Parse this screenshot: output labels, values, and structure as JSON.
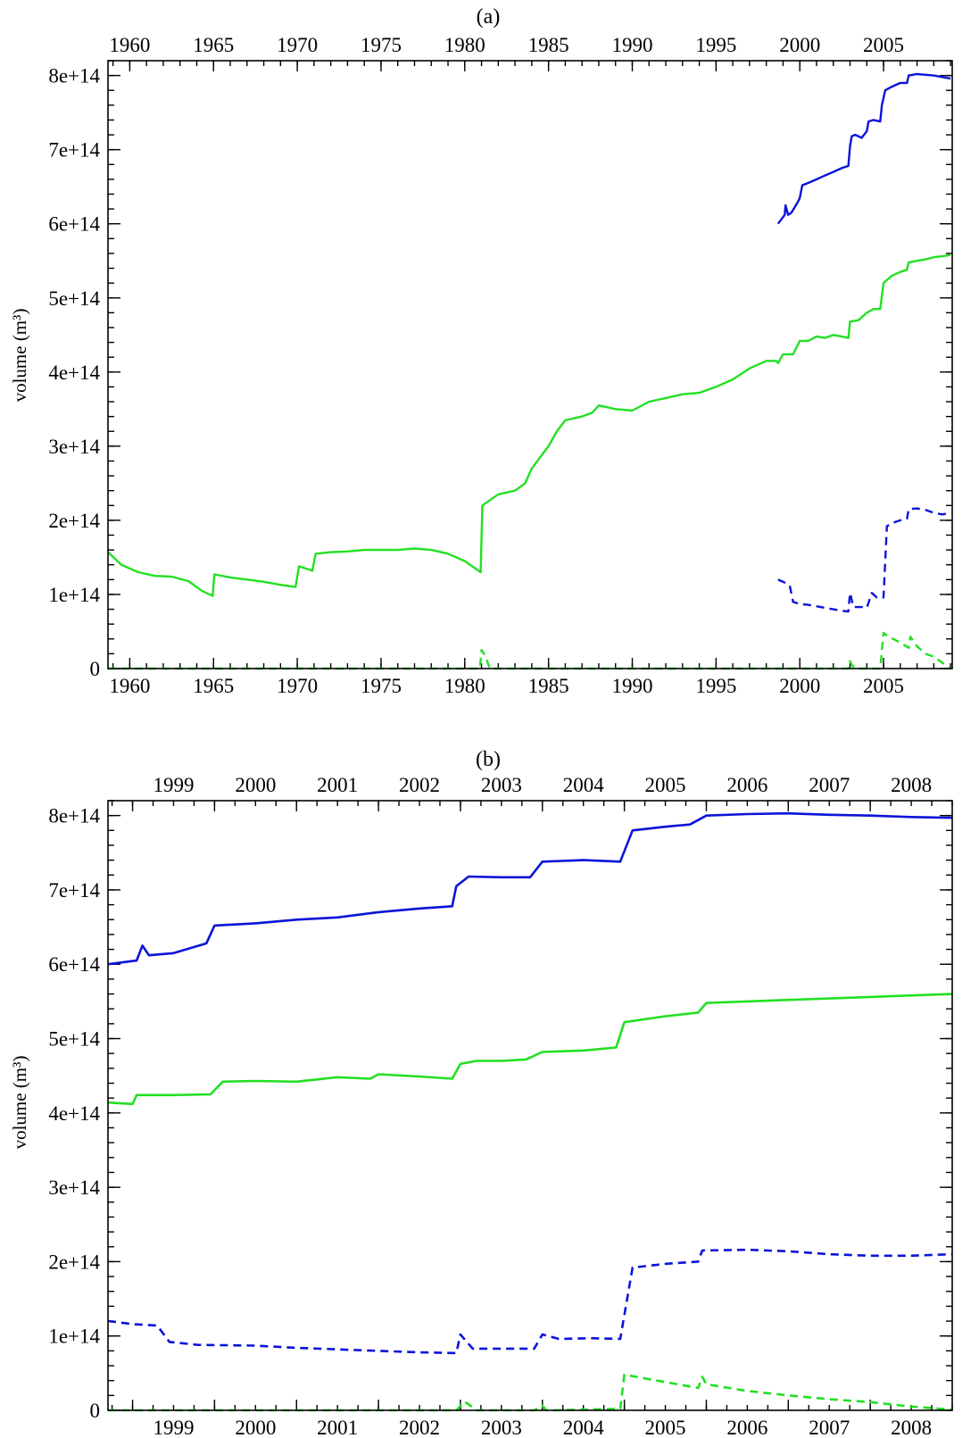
{
  "chart_data": [
    {
      "type": "line",
      "title": "(a)",
      "xlabel": "",
      "ylabel": "volume (m³)",
      "xlim": [
        1958.7,
        2009.1
      ],
      "ylim": [
        0,
        820000000000000.0
      ],
      "x_ticks": [
        1960,
        1965,
        1970,
        1975,
        1980,
        1985,
        1990,
        1995,
        2000,
        2005
      ],
      "y_ticks": [
        0,
        100000000000000.0,
        200000000000000.0,
        300000000000000.0,
        400000000000000.0,
        500000000000000.0,
        600000000000000.0,
        700000000000000.0,
        800000000000000.0
      ],
      "y_tick_labels": [
        "0",
        "1e+14",
        "2e+14",
        "3e+14",
        "4e+14",
        "5e+14",
        "6e+14",
        "7e+14",
        "8e+14"
      ],
      "grid": false,
      "legend": false,
      "series": [
        {
          "color": "#0a14d8",
          "style": "solid",
          "x": [
            1998.7,
            1999.1,
            1999.15,
            1999.3,
            1999.5,
            1999.9,
            2000.0,
            2000.15,
            2000.5,
            2001.0,
            2001.5,
            2002.0,
            2002.5,
            2002.9,
            2003.0,
            2003.1,
            2003.3,
            2003.7,
            2004.0,
            2004.1,
            2004.4,
            2004.8,
            2004.9,
            2005.1,
            2005.5,
            2006.0,
            2006.4,
            2006.5,
            2007.0,
            2007.5,
            2008.0,
            2008.5,
            2009.0
          ],
          "y": [
            600000000000000.0,
            612000000000000.0,
            625000000000000.0,
            612000000000000.0,
            615000000000000.0,
            630000000000000.0,
            635000000000000.0,
            652000000000000.0,
            655000000000000.0,
            660000000000000.0,
            665000000000000.0,
            670000000000000.0,
            675000000000000.0,
            678000000000000.0,
            705000000000000.0,
            718000000000000.0,
            720000000000000.0,
            716000000000000.0,
            725000000000000.0,
            738000000000000.0,
            740000000000000.0,
            738000000000000.0,
            760000000000000.0,
            780000000000000.0,
            785000000000000.0,
            790000000000000.0,
            790000000000000.0,
            800000000000000.0,
            802000000000000.0,
            801000000000000.0,
            800000000000000.0,
            798000000000000.0,
            796000000000000.0
          ]
        },
        {
          "color": "#0a14d8",
          "style": "dashed",
          "x": [
            1998.7,
            1999.2,
            1999.4,
            1999.6,
            2000.0,
            2000.5,
            2001.0,
            2001.5,
            2002.0,
            2002.5,
            2002.9,
            2003.0,
            2003.2,
            2003.5,
            2003.8,
            2004.0,
            2004.3,
            2004.6,
            2004.8,
            2005.0,
            2005.2,
            2005.6,
            2006.0,
            2006.4,
            2006.5,
            2007.0,
            2007.5,
            2008.0,
            2008.5,
            2009.0
          ],
          "y": [
            120000000000000.0,
            115000000000000.0,
            112000000000000.0,
            90000000000000.0,
            87000000000000.0,
            86000000000000.0,
            84000000000000.0,
            82000000000000.0,
            80000000000000.0,
            78000000000000.0,
            77000000000000.0,
            102000000000000.0,
            83000000000000.0,
            83000000000000.0,
            83000000000000.0,
            82000000000000.0,
            102000000000000.0,
            96000000000000.0,
            97000000000000.0,
            96000000000000.0,
            192000000000000.0,
            197000000000000.0,
            200000000000000.0,
            202000000000000.0,
            215000000000000.0,
            216000000000000.0,
            214000000000000.0,
            210000000000000.0,
            208000000000000.0,
            210000000000000.0
          ]
        },
        {
          "color": "#22e022",
          "style": "solid",
          "x": [
            1958.7,
            1959.5,
            1960.5,
            1961.5,
            1962.5,
            1963.5,
            1964.3,
            1964.95,
            1965.05,
            1966.0,
            1967.0,
            1968.0,
            1969.0,
            1969.9,
            1970.1,
            1970.5,
            1970.9,
            1971.1,
            1972.0,
            1973.0,
            1974.0,
            1975.0,
            1976.0,
            1977.0,
            1978.0,
            1979.0,
            1980.0,
            1980.95,
            1981.05,
            1982.0,
            1983.0,
            1983.6,
            1984.0,
            1984.5,
            1985.0,
            1985.5,
            1986.0,
            1987.0,
            1987.6,
            1988.0,
            1989.0,
            1990.0,
            1991.0,
            1992.0,
            1993.0,
            1994.0,
            1995.0,
            1996.0,
            1997.0,
            1998.0,
            1998.6,
            1998.7,
            1999.0,
            1999.6,
            2000.0,
            2000.5,
            2001.0,
            2001.5,
            2002.0,
            2002.5,
            2002.9,
            2003.0,
            2003.5,
            2004.0,
            2004.4,
            2004.8,
            2005.0,
            2005.5,
            2006.0,
            2006.4,
            2006.5,
            2007.0,
            2007.5,
            2008.0,
            2008.5,
            2009.0
          ],
          "y": [
            157000000000000.0,
            140000000000000.0,
            130000000000000.0,
            125000000000000.0,
            124000000000000.0,
            118000000000000.0,
            105000000000000.0,
            98000000000000.0,
            127000000000000.0,
            123000000000000.0,
            120000000000000.0,
            117000000000000.0,
            113000000000000.0,
            110000000000000.0,
            138000000000000.0,
            135000000000000.0,
            132000000000000.0,
            155000000000000.0,
            157000000000000.0,
            158000000000000.0,
            160000000000000.0,
            160000000000000.0,
            160000000000000.0,
            162000000000000.0,
            160000000000000.0,
            155000000000000.0,
            145000000000000.0,
            130000000000000.0,
            220000000000000.0,
            235000000000000.0,
            240000000000000.0,
            250000000000000.0,
            270000000000000.0,
            285000000000000.0,
            300000000000000.0,
            320000000000000.0,
            335000000000000.0,
            340000000000000.0,
            345000000000000.0,
            355000000000000.0,
            350000000000000.0,
            348000000000000.0,
            360000000000000.0,
            365000000000000.0,
            370000000000000.0,
            372000000000000.0,
            380000000000000.0,
            390000000000000.0,
            405000000000000.0,
            415000000000000.0,
            415000000000000.0,
            412000000000000.0,
            424000000000000.0,
            424000000000000.0,
            442000000000000.0,
            442000000000000.0,
            448000000000000.0,
            446000000000000.0,
            450000000000000.0,
            448000000000000.0,
            446000000000000.0,
            468000000000000.0,
            470000000000000.0,
            480000000000000.0,
            485000000000000.0,
            485000000000000.0,
            520000000000000.0,
            530000000000000.0,
            535000000000000.0,
            538000000000000.0,
            548000000000000.0,
            550000000000000.0,
            552000000000000.0,
            555000000000000.0,
            556000000000000.0,
            558000000000000.0
          ]
        },
        {
          "color": "#22e022",
          "style": "dashed",
          "x": [
            1958.7,
            1980.9,
            1981.0,
            1981.2,
            1981.5,
            2002.9,
            2003.0,
            2003.1,
            2003.3,
            2004.8,
            2005.0,
            2005.3,
            2006.0,
            2006.5,
            2006.6,
            2007.0,
            2007.5,
            2008.0,
            2008.5,
            2009.0
          ],
          "y": [
            0,
            0,
            25000000000000.0,
            18000000000000.0,
            0,
            0,
            10000000000000.0,
            5000000000000.0,
            0,
            0,
            48000000000000.0,
            43000000000000.0,
            35000000000000.0,
            28000000000000.0,
            43000000000000.0,
            30000000000000.0,
            20000000000000.0,
            16000000000000.0,
            8000000000000.0,
            0
          ]
        }
      ]
    },
    {
      "type": "line",
      "title": "(b)",
      "xlabel": "",
      "ylabel": "volume (m³)",
      "xlim": [
        1998.7,
        2009.0
      ],
      "ylim": [
        0,
        820000000000000.0
      ],
      "x_ticks": [
        1999,
        2000,
        2001,
        2002,
        2003,
        2004,
        2005,
        2006,
        2007,
        2008
      ],
      "x_tick_labels_position": "mid-year",
      "y_ticks": [
        0,
        100000000000000.0,
        200000000000000.0,
        300000000000000.0,
        400000000000000.0,
        500000000000000.0,
        600000000000000.0,
        700000000000000.0,
        800000000000000.0
      ],
      "y_tick_labels": [
        "0",
        "1e+14",
        "2e+14",
        "3e+14",
        "4e+14",
        "5e+14",
        "6e+14",
        "7e+14",
        "8e+14"
      ],
      "grid": false,
      "legend": false,
      "series": [
        {
          "color": "#0a14d8",
          "style": "solid",
          "x": [
            1998.7,
            1999.05,
            1999.12,
            1999.2,
            1999.5,
            1999.9,
            2000.0,
            2000.5,
            2001.0,
            2001.5,
            2002.0,
            2002.5,
            2002.9,
            2002.95,
            2003.1,
            2003.5,
            2003.85,
            2004.0,
            2004.5,
            2004.95,
            2005.1,
            2005.5,
            2005.8,
            2006.0,
            2006.5,
            2007.0,
            2007.5,
            2008.0,
            2008.5,
            2009.0
          ],
          "y": [
            600000000000000.0,
            605000000000000.0,
            625000000000000.0,
            612000000000000.0,
            615000000000000.0,
            628000000000000.0,
            652000000000000.0,
            655000000000000.0,
            660000000000000.0,
            663000000000000.0,
            670000000000000.0,
            675000000000000.0,
            678000000000000.0,
            705000000000000.0,
            718000000000000.0,
            717000000000000.0,
            717000000000000.0,
            738000000000000.0,
            740000000000000.0,
            738000000000000.0,
            780000000000000.0,
            785000000000000.0,
            788000000000000.0,
            800000000000000.0,
            802000000000000.0,
            803000000000000.0,
            801000000000000.0,
            800000000000000.0,
            798000000000000.0,
            797000000000000.0
          ]
        },
        {
          "color": "#0a14d8",
          "style": "dashed",
          "x": [
            1998.7,
            1999.0,
            1999.3,
            1999.45,
            1999.8,
            2000.5,
            2001.0,
            2001.5,
            2002.0,
            2002.5,
            2002.95,
            2003.0,
            2003.15,
            2003.5,
            2003.9,
            2004.0,
            2004.2,
            2004.6,
            2004.95,
            2005.1,
            2005.5,
            2005.9,
            2005.95,
            2006.5,
            2007.0,
            2007.5,
            2008.0,
            2008.5,
            2009.0
          ],
          "y": [
            120000000000000.0,
            116000000000000.0,
            114000000000000.0,
            92000000000000.0,
            88000000000000.0,
            87000000000000.0,
            84000000000000.0,
            82000000000000.0,
            80000000000000.0,
            78000000000000.0,
            77000000000000.0,
            102000000000000.0,
            83000000000000.0,
            83000000000000.0,
            83000000000000.0,
            102000000000000.0,
            96000000000000.0,
            97000000000000.0,
            96000000000000.0,
            192000000000000.0,
            197000000000000.0,
            200000000000000.0,
            215000000000000.0,
            216000000000000.0,
            214000000000000.0,
            210000000000000.0,
            208000000000000.0,
            208000000000000.0,
            210000000000000.0
          ]
        },
        {
          "color": "#22e022",
          "style": "solid",
          "x": [
            1998.7,
            1999.0,
            1999.05,
            1999.5,
            1999.95,
            2000.1,
            2000.5,
            2001.0,
            2001.5,
            2001.9,
            2002.0,
            2002.5,
            2002.9,
            2003.0,
            2003.2,
            2003.5,
            2003.8,
            2004.0,
            2004.5,
            2004.9,
            2005.0,
            2005.5,
            2005.9,
            2006.0,
            2006.5,
            2007.0,
            2007.5,
            2008.0,
            2008.5,
            2009.0
          ],
          "y": [
            414000000000000.0,
            412000000000000.0,
            424000000000000.0,
            424000000000000.0,
            425000000000000.0,
            442000000000000.0,
            443000000000000.0,
            442000000000000.0,
            448000000000000.0,
            446000000000000.0,
            452000000000000.0,
            449000000000000.0,
            446000000000000.0,
            466000000000000.0,
            470000000000000.0,
            470000000000000.0,
            472000000000000.0,
            482000000000000.0,
            484000000000000.0,
            488000000000000.0,
            522000000000000.0,
            530000000000000.0,
            535000000000000.0,
            548000000000000.0,
            550000000000000.0,
            552000000000000.0,
            554000000000000.0,
            556000000000000.0,
            558000000000000.0,
            560000000000000.0
          ]
        },
        {
          "color": "#22e022",
          "style": "dashed",
          "x": [
            1998.7,
            2002.95,
            2003.05,
            2003.2,
            2003.9,
            2004.0,
            2004.05,
            2004.1,
            2004.95,
            2005.0,
            2005.2,
            2005.5,
            2005.9,
            2005.95,
            2006.0,
            2006.5,
            2007.0,
            2007.5,
            2008.0,
            2008.5,
            2009.0
          ],
          "y": [
            0,
            0,
            12000000000000.0,
            0,
            0,
            6000000000000.0,
            0,
            0,
            2000000000000.0,
            48000000000000.0,
            44000000000000.0,
            38000000000000.0,
            30000000000000.0,
            45000000000000.0,
            35000000000000.0,
            26000000000000.0,
            20000000000000.0,
            15000000000000.0,
            11000000000000.0,
            5000000000000.0,
            1000000000000.0
          ]
        }
      ]
    }
  ]
}
